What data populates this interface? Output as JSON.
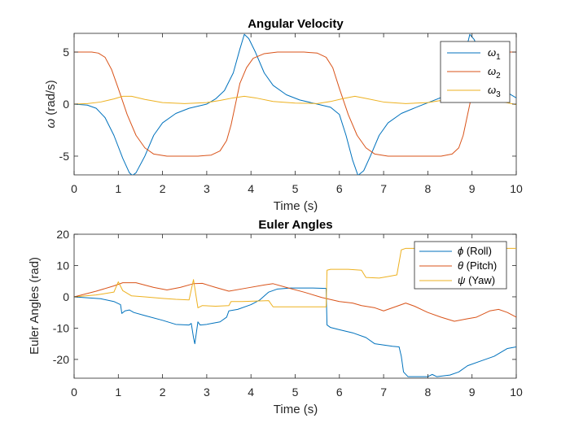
{
  "chart_data": [
    {
      "type": "line",
      "title": "Angular Velocity",
      "xlabel": "Time (s)",
      "ylabel_sym": "ω",
      "ylabel_text": " (rad/s)",
      "xlim": [
        0,
        10
      ],
      "ylim": [
        -6.8,
        6.8
      ],
      "xticks": [
        0,
        1,
        2,
        3,
        4,
        5,
        6,
        7,
        8,
        9,
        10
      ],
      "yticks": [
        -5,
        0,
        5
      ],
      "grid": false,
      "legend_position": "top-right",
      "series": [
        {
          "name_sym": "ω",
          "name_sub": "1",
          "color": "#0072BD",
          "points": [
            [
              0,
              0
            ],
            [
              0.3,
              -0.1
            ],
            [
              0.5,
              -0.4
            ],
            [
              0.7,
              -1.3
            ],
            [
              0.9,
              -3
            ],
            [
              1.1,
              -5.2
            ],
            [
              1.25,
              -6.6
            ],
            [
              1.32,
              -6.85
            ],
            [
              1.4,
              -6.6
            ],
            [
              1.6,
              -5
            ],
            [
              1.8,
              -3
            ],
            [
              2.0,
              -1.8
            ],
            [
              2.3,
              -0.9
            ],
            [
              2.6,
              -0.4
            ],
            [
              3.0,
              0
            ],
            [
              3.2,
              0.5
            ],
            [
              3.4,
              1.3
            ],
            [
              3.6,
              3
            ],
            [
              3.75,
              5.3
            ],
            [
              3.85,
              6.7
            ],
            [
              3.95,
              6.3
            ],
            [
              4.1,
              5
            ],
            [
              4.3,
              3
            ],
            [
              4.5,
              1.8
            ],
            [
              4.8,
              0.9
            ],
            [
              5.1,
              0.4
            ],
            [
              5.5,
              0
            ],
            [
              5.8,
              -0.3
            ],
            [
              6.0,
              -1
            ],
            [
              6.15,
              -3
            ],
            [
              6.3,
              -5.4
            ],
            [
              6.42,
              -6.85
            ],
            [
              6.55,
              -6.4
            ],
            [
              6.7,
              -5
            ],
            [
              6.9,
              -3
            ],
            [
              7.1,
              -1.8
            ],
            [
              7.4,
              -0.9
            ],
            [
              7.8,
              -0.2
            ],
            [
              8.1,
              0.3
            ],
            [
              8.4,
              0.8
            ],
            [
              8.6,
              1.6
            ],
            [
              8.75,
              3.2
            ],
            [
              8.88,
              5.5
            ],
            [
              8.95,
              6.7
            ],
            [
              9.05,
              6.2
            ],
            [
              9.2,
              4.5
            ],
            [
              9.4,
              2.8
            ],
            [
              9.6,
              1.7
            ],
            [
              9.8,
              1.1
            ],
            [
              10,
              0.6
            ]
          ]
        },
        {
          "name_sym": "ω",
          "name_sub": "2",
          "color": "#D95319",
          "points": [
            [
              0,
              5
            ],
            [
              0.4,
              5
            ],
            [
              0.55,
              4.9
            ],
            [
              0.7,
              4.5
            ],
            [
              0.85,
              3.3
            ],
            [
              1.0,
              1.5
            ],
            [
              1.2,
              -1
            ],
            [
              1.4,
              -3
            ],
            [
              1.6,
              -4.2
            ],
            [
              1.8,
              -4.8
            ],
            [
              2.1,
              -5
            ],
            [
              2.8,
              -5
            ],
            [
              3.1,
              -4.9
            ],
            [
              3.3,
              -4.5
            ],
            [
              3.45,
              -3.5
            ],
            [
              3.55,
              -2
            ],
            [
              3.65,
              0
            ],
            [
              3.75,
              2
            ],
            [
              3.9,
              3.5
            ],
            [
              4.05,
              4.4
            ],
            [
              4.3,
              4.85
            ],
            [
              4.6,
              5
            ],
            [
              5.2,
              5
            ],
            [
              5.5,
              4.9
            ],
            [
              5.7,
              4.5
            ],
            [
              5.85,
              3.5
            ],
            [
              6.0,
              1.5
            ],
            [
              6.2,
              -1
            ],
            [
              6.4,
              -3
            ],
            [
              6.6,
              -4.2
            ],
            [
              6.8,
              -4.8
            ],
            [
              7.1,
              -5
            ],
            [
              8.3,
              -5
            ],
            [
              8.55,
              -4.8
            ],
            [
              8.7,
              -4.2
            ],
            [
              8.8,
              -3
            ],
            [
              8.9,
              -1
            ],
            [
              9.0,
              1
            ],
            [
              9.1,
              3
            ],
            [
              9.25,
              4.3
            ],
            [
              9.45,
              4.85
            ],
            [
              9.7,
              5
            ],
            [
              10,
              5
            ]
          ]
        },
        {
          "name_sym": "ω",
          "name_sub": "3",
          "color": "#EDB120",
          "points": [
            [
              0,
              0
            ],
            [
              0.3,
              0.05
            ],
            [
              0.6,
              0.2
            ],
            [
              0.9,
              0.5
            ],
            [
              1.1,
              0.75
            ],
            [
              1.3,
              0.75
            ],
            [
              1.6,
              0.45
            ],
            [
              2.0,
              0.15
            ],
            [
              2.5,
              0.05
            ],
            [
              3.0,
              0.15
            ],
            [
              3.3,
              0.35
            ],
            [
              3.6,
              0.6
            ],
            [
              3.85,
              0.75
            ],
            [
              4.1,
              0.6
            ],
            [
              4.5,
              0.25
            ],
            [
              5.0,
              0.1
            ],
            [
              5.5,
              0.05
            ],
            [
              5.8,
              0.25
            ],
            [
              6.1,
              0.55
            ],
            [
              6.35,
              0.75
            ],
            [
              6.6,
              0.55
            ],
            [
              7.0,
              0.2
            ],
            [
              7.5,
              0.05
            ],
            [
              8.0,
              0.15
            ],
            [
              8.3,
              0.35
            ],
            [
              8.6,
              0.6
            ],
            [
              8.9,
              0.75
            ],
            [
              9.2,
              0.6
            ],
            [
              9.6,
              0.3
            ],
            [
              10,
              -0.05
            ]
          ]
        }
      ]
    },
    {
      "type": "line",
      "title": "Euler Angles",
      "xlabel": "Time (s)",
      "ylabel": "Euler Angles (rad)",
      "xlim": [
        0,
        10
      ],
      "ylim": [
        -26,
        20
      ],
      "xticks": [
        0,
        1,
        2,
        3,
        4,
        5,
        6,
        7,
        8,
        9,
        10
      ],
      "yticks": [
        -20,
        -10,
        0,
        10,
        20
      ],
      "grid": false,
      "legend_position": "top-right",
      "series": [
        {
          "name_sym": "ϕ",
          "name_text": " (Roll)",
          "color": "#0072BD",
          "points": [
            [
              0,
              0
            ],
            [
              0.3,
              -0.3
            ],
            [
              0.6,
              -0.6
            ],
            [
              0.9,
              -1.5
            ],
            [
              1.05,
              -2.5
            ],
            [
              1.08,
              -5.3
            ],
            [
              1.15,
              -4.5
            ],
            [
              1.25,
              -4.2
            ],
            [
              1.35,
              -5
            ],
            [
              1.6,
              -6
            ],
            [
              2.0,
              -7.5
            ],
            [
              2.3,
              -8.8
            ],
            [
              2.6,
              -9
            ],
            [
              2.65,
              -8.5
            ],
            [
              2.7,
              -13
            ],
            [
              2.73,
              -15
            ],
            [
              2.76,
              -12
            ],
            [
              2.8,
              -8
            ],
            [
              2.85,
              -9
            ],
            [
              3.0,
              -8.8
            ],
            [
              3.3,
              -8
            ],
            [
              3.45,
              -6.5
            ],
            [
              3.5,
              -4.5
            ],
            [
              3.7,
              -4
            ],
            [
              4.0,
              -2.5
            ],
            [
              4.2,
              -1
            ],
            [
              4.4,
              1.5
            ],
            [
              4.6,
              2.5
            ],
            [
              4.9,
              2.8
            ],
            [
              5.4,
              2.8
            ],
            [
              5.7,
              2.7
            ],
            [
              5.72,
              -9
            ],
            [
              5.8,
              -9.8
            ],
            [
              6.0,
              -10.5
            ],
            [
              6.3,
              -11.5
            ],
            [
              6.6,
              -13
            ],
            [
              6.8,
              -15
            ],
            [
              7.2,
              -15.8
            ],
            [
              7.35,
              -16
            ],
            [
              7.4,
              -19
            ],
            [
              7.45,
              -24
            ],
            [
              7.55,
              -25.5
            ],
            [
              8.0,
              -25.5
            ],
            [
              8.1,
              -24.8
            ],
            [
              8.2,
              -25.5
            ],
            [
              8.5,
              -25
            ],
            [
              8.7,
              -24
            ],
            [
              8.9,
              -22
            ],
            [
              9.2,
              -20.5
            ],
            [
              9.5,
              -19
            ],
            [
              9.8,
              -16.5
            ],
            [
              10,
              -16
            ]
          ]
        },
        {
          "name_sym": "θ",
          "name_text": " (Pitch)",
          "color": "#D95319",
          "points": [
            [
              0,
              0
            ],
            [
              0.5,
              1.8
            ],
            [
              0.9,
              3.5
            ],
            [
              1.1,
              4.5
            ],
            [
              1.4,
              4.5
            ],
            [
              1.8,
              3
            ],
            [
              2.1,
              2.2
            ],
            [
              2.4,
              3
            ],
            [
              2.7,
              4.2
            ],
            [
              2.9,
              4.3
            ],
            [
              3.2,
              3
            ],
            [
              3.5,
              1.8
            ],
            [
              3.9,
              2.8
            ],
            [
              4.3,
              3.8
            ],
            [
              4.5,
              4.2
            ],
            [
              4.8,
              3
            ],
            [
              5.2,
              1.5
            ],
            [
              5.6,
              -0.2
            ],
            [
              6.0,
              -1.5
            ],
            [
              6.3,
              -2
            ],
            [
              6.5,
              -2.8
            ],
            [
              6.8,
              -3.5
            ],
            [
              7.0,
              -4.5
            ],
            [
              7.3,
              -3
            ],
            [
              7.5,
              -2
            ],
            [
              7.7,
              -3
            ],
            [
              8.0,
              -5
            ],
            [
              8.3,
              -6.5
            ],
            [
              8.6,
              -7.8
            ],
            [
              8.9,
              -7
            ],
            [
              9.1,
              -6.5
            ],
            [
              9.4,
              -4.5
            ],
            [
              9.6,
              -4
            ],
            [
              9.8,
              -5
            ],
            [
              10,
              -6.5
            ]
          ]
        },
        {
          "name_sym": "ψ",
          "name_text": " (Yaw)",
          "color": "#EDB120",
          "points": [
            [
              0,
              0
            ],
            [
              0.5,
              0.6
            ],
            [
              0.9,
              1.5
            ],
            [
              1.0,
              4.8
            ],
            [
              1.1,
              2
            ],
            [
              1.3,
              0.3
            ],
            [
              1.6,
              0
            ],
            [
              2.0,
              -0.5
            ],
            [
              2.3,
              -0.8
            ],
            [
              2.6,
              -1
            ],
            [
              2.7,
              5.5
            ],
            [
              2.75,
              1
            ],
            [
              2.8,
              -3.5
            ],
            [
              2.9,
              -2.8
            ],
            [
              3.2,
              -3
            ],
            [
              3.5,
              -2.8
            ],
            [
              3.55,
              -1.5
            ],
            [
              3.8,
              -1.5
            ],
            [
              4.4,
              -1.2
            ],
            [
              4.5,
              -3.2
            ],
            [
              5.0,
              -3.2
            ],
            [
              5.7,
              -3.2
            ],
            [
              5.72,
              8.5
            ],
            [
              5.8,
              8.8
            ],
            [
              6.2,
              8.8
            ],
            [
              6.5,
              8.5
            ],
            [
              6.6,
              6.2
            ],
            [
              6.9,
              6
            ],
            [
              7.1,
              6.5
            ],
            [
              7.3,
              7
            ],
            [
              7.4,
              15
            ],
            [
              7.5,
              15.5
            ],
            [
              8.0,
              15.5
            ],
            [
              10,
              15.5
            ]
          ]
        }
      ]
    }
  ]
}
